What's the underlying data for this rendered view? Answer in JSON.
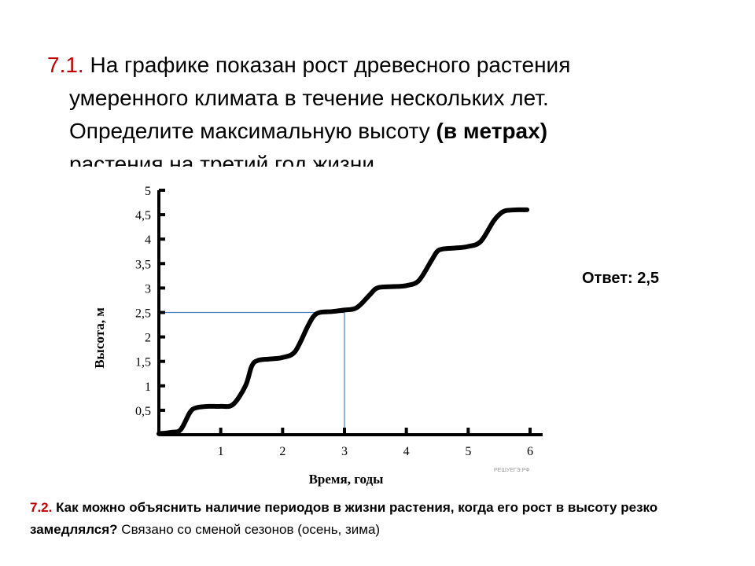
{
  "question1": {
    "number": "7.1.",
    "line1": " На графике показан рост древесного растения",
    "line2": "умеренного климата в течение нескольких лет.",
    "line3_text": "Определите максимальную высоту ",
    "line3_bold": "(в метрах)",
    "line4": "растения на третий год жизни."
  },
  "answer": "Ответ: 2,5",
  "question2": {
    "number": "7.2.",
    "bold_text": " Как можно объяснить наличие периодов в жизни растения, когда его рост в высоту резко замедлялся?",
    "answer_text": " Связано со сменой сезонов (осень, зима)"
  },
  "chart_data": {
    "type": "line",
    "xlabel": "Время, годы",
    "ylabel": "Высота, м",
    "x_ticks": [
      "1",
      "2",
      "3",
      "4",
      "5",
      "6"
    ],
    "y_ticks": [
      "0,5",
      "1",
      "1,5",
      "2",
      "2,5",
      "3",
      "3,5",
      "4",
      "4,5",
      "5"
    ],
    "xlim": [
      0,
      6
    ],
    "ylim": [
      0,
      5
    ],
    "watermark": "РЕШУЕГЭ.РФ",
    "series": [
      {
        "x": [
          0,
          0.2,
          0.35,
          0.5,
          0.6,
          0.8,
          1.0,
          1.2,
          1.4,
          1.5,
          1.6,
          1.8,
          2.0,
          2.2,
          2.4,
          2.5,
          2.6,
          2.8,
          3.0,
          3.2,
          3.4,
          3.5,
          3.6,
          3.8,
          4.0,
          4.2,
          4.4,
          4.5,
          4.6,
          4.8,
          5.0,
          5.2,
          5.4,
          5.5,
          5.6,
          5.8,
          5.95
        ],
        "y": [
          0.02,
          0.05,
          0.1,
          0.45,
          0.55,
          0.58,
          0.58,
          0.62,
          1.0,
          1.4,
          1.52,
          1.55,
          1.58,
          1.7,
          2.2,
          2.42,
          2.5,
          2.52,
          2.55,
          2.6,
          2.85,
          2.98,
          3.02,
          3.03,
          3.05,
          3.15,
          3.55,
          3.75,
          3.8,
          3.82,
          3.85,
          3.95,
          4.35,
          4.5,
          4.58,
          4.6,
          4.6
        ]
      }
    ],
    "guide": {
      "x": 3,
      "y": 2.5,
      "color": "#4f81bd"
    }
  }
}
